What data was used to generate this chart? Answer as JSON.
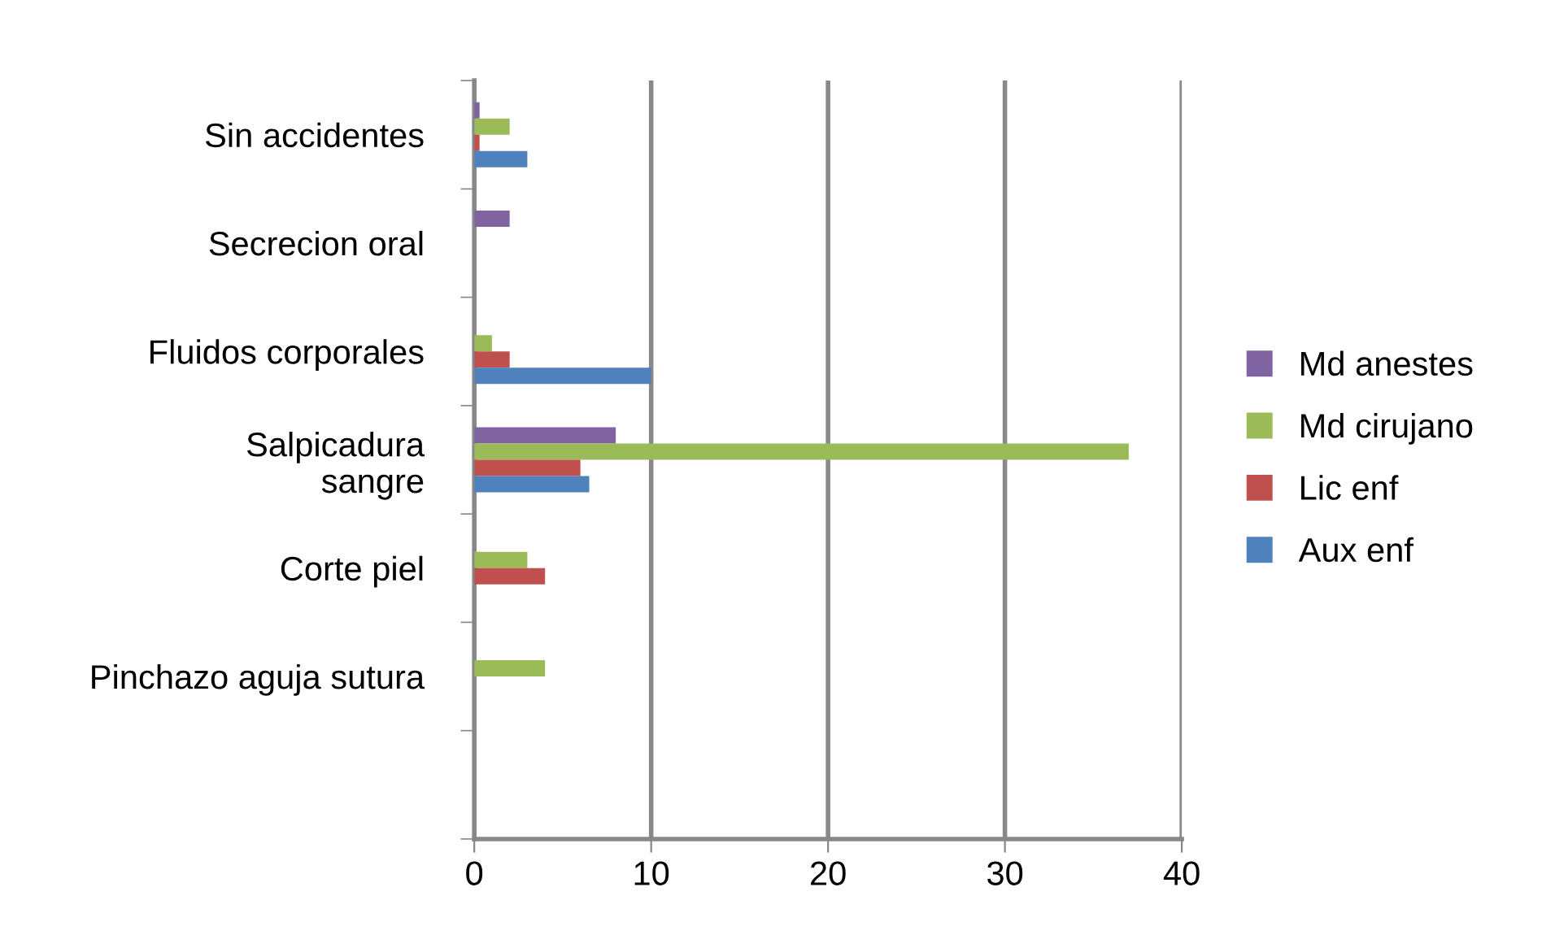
{
  "chart_data": {
    "type": "bar",
    "orientation": "horizontal",
    "categories": [
      "Sin accidentes",
      "Secrecion oral",
      "Fluidos corporales",
      "Salpicadura\nsangre",
      "Corte piel",
      "Pinchazo aguja sutura",
      null
    ],
    "series": [
      {
        "name": "Md anestes",
        "color": "#8064a2",
        "values": [
          0.3,
          2,
          null,
          8,
          null,
          null,
          null
        ]
      },
      {
        "name": "Md cirujano",
        "color": "#9bbb59",
        "values": [
          2,
          null,
          1,
          37,
          3,
          4,
          null
        ]
      },
      {
        "name": "Lic enf",
        "color": "#c0504d",
        "values": [
          0.3,
          null,
          2,
          6,
          4,
          null,
          null
        ]
      },
      {
        "name": "Aux enf",
        "color": "#4f81bd",
        "values": [
          3,
          null,
          10,
          6.5,
          null,
          null,
          null
        ]
      }
    ],
    "xlim": [
      0,
      40
    ],
    "xticks": [
      0,
      10,
      20,
      30,
      40
    ],
    "grid": "x",
    "legend": "right"
  }
}
